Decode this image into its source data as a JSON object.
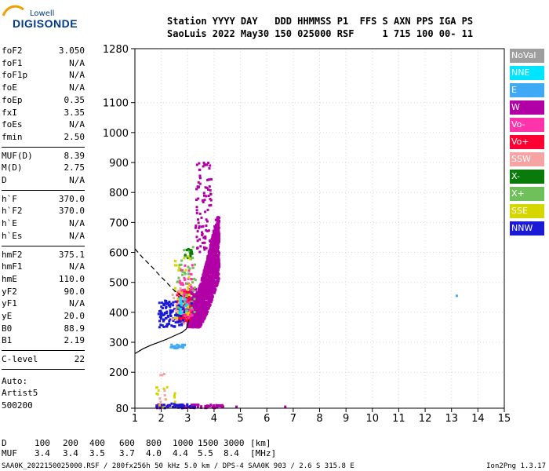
{
  "logo": {
    "top": "Lowell",
    "main": "DIGISONDE"
  },
  "header": {
    "line1": "Station YYYY DAY   DDD HHMMSS P1  FFS S AXN PPS IGA PS",
    "line2": "SaoLuis 2022 May30 150 025000 RSF     1 715 100 00- 11"
  },
  "groups": [
    [
      {
        "name": "foF2",
        "value": "3.050"
      },
      {
        "name": "foF1",
        "value": "N/A"
      },
      {
        "name": "foF1p",
        "value": "N/A"
      },
      {
        "name": "foE",
        "value": "N/A"
      },
      {
        "name": "foEp",
        "value": "0.35"
      },
      {
        "name": "fxI",
        "value": "3.35"
      },
      {
        "name": "foEs",
        "value": "N/A"
      },
      {
        "name": "fmin",
        "value": "2.50"
      }
    ],
    [
      {
        "name": "MUF(D)",
        "value": "8.39"
      },
      {
        "name": "M(D)",
        "value": "2.75"
      },
      {
        "name": "D",
        "value": "N/A"
      }
    ],
    [
      {
        "name": "h`F",
        "value": "370.0"
      },
      {
        "name": "h`F2",
        "value": "370.0"
      },
      {
        "name": "h`E",
        "value": "N/A"
      },
      {
        "name": "h`Es",
        "value": "N/A"
      }
    ],
    [
      {
        "name": "hmF2",
        "value": "375.1"
      },
      {
        "name": "hmF1",
        "value": "N/A"
      },
      {
        "name": "hmE",
        "value": "110.0"
      },
      {
        "name": "yF2",
        "value": "90.0"
      },
      {
        "name": "yF1",
        "value": "N/A"
      },
      {
        "name": "yE",
        "value": "20.0"
      },
      {
        "name": "B0",
        "value": "88.9"
      },
      {
        "name": "B1",
        "value": "2.19"
      }
    ],
    [
      {
        "name": "C-level",
        "value": "22"
      }
    ]
  ],
  "autoscaling": [
    "Auto:",
    "Artist5",
    "500200"
  ],
  "legend": [
    {
      "label": "NoVal",
      "color": "#9e9e9e"
    },
    {
      "label": "NNE",
      "color": "#00e5ff"
    },
    {
      "label": "E",
      "color": "#3fa9f5"
    },
    {
      "label": "W",
      "color": "#b000a6"
    },
    {
      "label": "Vo-",
      "color": "#ff33aa"
    },
    {
      "label": "Vo+",
      "color": "#ff0033"
    },
    {
      "label": "SSW",
      "color": "#f5a3a3"
    },
    {
      "label": "X-",
      "color": "#0a7a0a"
    },
    {
      "label": "X+",
      "color": "#6fbf5a"
    },
    {
      "label": "SSE",
      "color": "#d6d600"
    },
    {
      "label": "NNW",
      "color": "#1a1ad6"
    }
  ],
  "muf_table": {
    "d_label": "D",
    "d_values": [
      "100",
      "200",
      "400",
      "600",
      "800",
      "1000",
      "1500",
      "3000",
      "[km]"
    ],
    "muf_label": "MUF",
    "muf_values": [
      "3.4",
      "3.4",
      "3.5",
      "3.7",
      "4.0",
      "4.4",
      "5.5",
      "8.4",
      "[MHz]"
    ]
  },
  "footer": {
    "left": "SAA0K_2022150025000.RSF / 280fx256h 50 kHz 5.0 km / DPS-4 SAA0K 903 / 2.6 S 315.8 E",
    "right": "Ion2Png 1.3.17"
  },
  "chart_data": {
    "type": "scatter",
    "title": "",
    "xlabel": "",
    "ylabel": "",
    "xlim": [
      1,
      15
    ],
    "ylim": [
      80,
      1280
    ],
    "x_ticks": [
      1,
      2,
      3,
      4,
      5,
      6,
      7,
      8,
      9,
      10,
      11,
      12,
      13,
      14,
      15
    ],
    "y_ticks": [
      80,
      200,
      300,
      400,
      500,
      600,
      700,
      800,
      900,
      1000,
      1100,
      1280
    ],
    "grid": true,
    "echo_clusters": [
      {
        "series": "W",
        "color": "#b000a6",
        "x": [
          3.0,
          4.2
        ],
        "y": [
          350,
          720
        ],
        "count": 1600
      },
      {
        "series": "W",
        "color": "#b000a6",
        "x": [
          3.3,
          3.9
        ],
        "y": [
          600,
          900
        ],
        "count": 90
      },
      {
        "series": "W",
        "color": "#b000a6",
        "x": [
          3.0,
          3.6
        ],
        "y": [
          380,
          480
        ],
        "count": 160
      },
      {
        "series": "Vo+",
        "color": "#ff0033",
        "x": [
          2.6,
          3.1
        ],
        "y": [
          370,
          470
        ],
        "count": 170
      },
      {
        "series": "Vo-",
        "color": "#ff33aa",
        "x": [
          2.7,
          3.2
        ],
        "y": [
          380,
          560
        ],
        "count": 60
      },
      {
        "series": "NNW",
        "color": "#1a1ad6",
        "x": [
          1.9,
          2.9
        ],
        "y": [
          350,
          440
        ],
        "count": 110
      },
      {
        "series": "X+",
        "color": "#6fbf5a",
        "x": [
          2.6,
          3.3
        ],
        "y": [
          400,
          620
        ],
        "count": 45
      },
      {
        "series": "X-",
        "color": "#0a7a0a",
        "x": [
          2.9,
          3.2
        ],
        "y": [
          580,
          620
        ],
        "count": 12
      },
      {
        "series": "SSE",
        "color": "#d6d600",
        "x": [
          2.5,
          3.1
        ],
        "y": [
          380,
          600
        ],
        "count": 30
      },
      {
        "series": "SSW",
        "color": "#f5a3a3",
        "x": [
          2.4,
          3.0
        ],
        "y": [
          360,
          480
        ],
        "count": 22
      },
      {
        "series": "NNE",
        "color": "#00e5ff",
        "x": [
          2.7,
          3.0
        ],
        "y": [
          380,
          450
        ],
        "count": 14
      },
      {
        "series": "E",
        "color": "#3fa9f5",
        "x": [
          2.35,
          2.9
        ],
        "y": [
          280,
          292
        ],
        "count": 26
      },
      {
        "series": "W",
        "color": "#b000a6",
        "x": [
          1.8,
          4.4
        ],
        "y": [
          80,
          92
        ],
        "count": 70
      },
      {
        "series": "NNW",
        "color": "#1a1ad6",
        "x": [
          1.8,
          3.3
        ],
        "y": [
          80,
          95
        ],
        "count": 35
      },
      {
        "series": "SSE",
        "color": "#d6d600",
        "x": [
          1.8,
          2.6
        ],
        "y": [
          80,
          150
        ],
        "count": 14
      },
      {
        "series": "SSW",
        "color": "#f5a3a3",
        "x": [
          1.9,
          2.2
        ],
        "y": [
          100,
          220
        ],
        "count": 8
      }
    ],
    "isolated_points": [
      {
        "x": 13.2,
        "y": 455,
        "series": "E",
        "color": "#3fa9f5"
      },
      {
        "x": 6.7,
        "y": 85,
        "series": "W",
        "color": "#b000a6"
      },
      {
        "x": 4.85,
        "y": 85,
        "series": "W",
        "color": "#b000a6"
      },
      {
        "x": 3.15,
        "y": 430,
        "series": "NNW",
        "color": "#1a1ad6"
      }
    ],
    "true_height_profile": [
      [
        1.0,
        262
      ],
      [
        1.3,
        278
      ],
      [
        1.6,
        290
      ],
      [
        1.9,
        300
      ],
      [
        2.2,
        310
      ],
      [
        2.5,
        322
      ],
      [
        2.8,
        334
      ],
      [
        2.95,
        345
      ],
      [
        3.05,
        375
      ]
    ],
    "dashed_curve": [
      [
        1.0,
        612
      ],
      [
        1.3,
        582
      ],
      [
        1.6,
        556
      ],
      [
        1.9,
        527
      ],
      [
        2.2,
        500
      ],
      [
        2.5,
        472
      ],
      [
        2.75,
        455
      ],
      [
        3.0,
        448
      ]
    ]
  }
}
